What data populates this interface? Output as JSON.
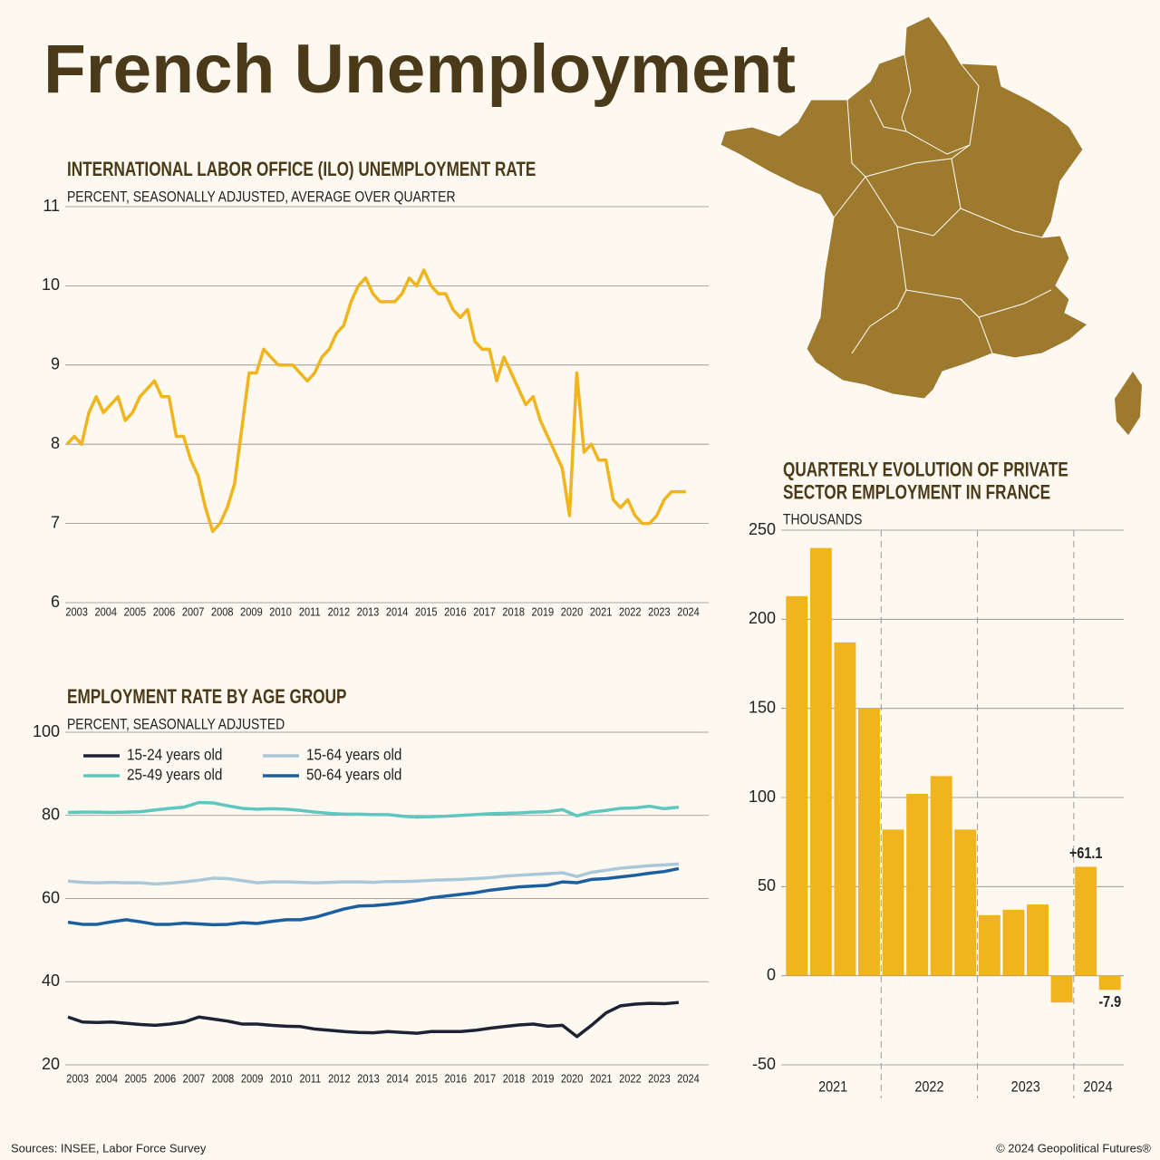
{
  "title": "French Unemployment",
  "footer": {
    "source": "Sources: INSEE, Labor Force Survey",
    "copyright": "© 2024 Geopolitical Futures®"
  },
  "chart_data": [
    {
      "type": "line",
      "title": "INTERNATIONAL LABOR OFFICE (ILO) UNEMPLOYMENT RATE",
      "subtitle": "PERCENT, SEASONALLY ADJUSTED, AVERAGE OVER QUARTER",
      "color": "#f0b41c",
      "x": [
        2003,
        2003.25,
        2003.5,
        2003.75,
        2004,
        2004.25,
        2004.5,
        2004.75,
        2005,
        2005.25,
        2005.5,
        2005.75,
        2006,
        2006.25,
        2006.5,
        2006.75,
        2007,
        2007.25,
        2007.5,
        2007.75,
        2008,
        2008.25,
        2008.5,
        2008.75,
        2009,
        2009.25,
        2009.5,
        2009.75,
        2010,
        2010.25,
        2010.5,
        2010.75,
        2011,
        2011.25,
        2011.5,
        2011.75,
        2012,
        2012.25,
        2012.5,
        2012.75,
        2013,
        2013.25,
        2013.5,
        2013.75,
        2014,
        2014.25,
        2014.5,
        2014.75,
        2015,
        2015.25,
        2015.5,
        2015.75,
        2016,
        2016.25,
        2016.5,
        2016.75,
        2017,
        2017.25,
        2017.5,
        2017.75,
        2018,
        2018.25,
        2018.5,
        2018.75,
        2019,
        2019.25,
        2019.5,
        2019.75,
        2020,
        2020.25,
        2020.5,
        2020.75,
        2021,
        2021.25,
        2021.5,
        2021.75,
        2022,
        2022.25,
        2022.5,
        2022.75,
        2023,
        2023.25,
        2023.5,
        2023.75,
        2024,
        2024.25
      ],
      "values": [
        8.0,
        8.1,
        8.0,
        8.4,
        8.6,
        8.4,
        8.5,
        8.6,
        8.3,
        8.4,
        8.6,
        8.7,
        8.8,
        8.6,
        8.6,
        8.1,
        8.1,
        7.8,
        7.6,
        7.2,
        6.9,
        7.0,
        7.2,
        7.5,
        8.2,
        8.9,
        8.9,
        9.2,
        9.1,
        9.0,
        9.0,
        9.0,
        8.9,
        8.8,
        8.9,
        9.1,
        9.2,
        9.4,
        9.5,
        9.8,
        10.0,
        10.1,
        9.9,
        9.8,
        9.8,
        9.8,
        9.9,
        10.1,
        10.0,
        10.2,
        10.0,
        9.9,
        9.9,
        9.7,
        9.6,
        9.7,
        9.3,
        9.2,
        9.2,
        8.8,
        9.1,
        8.9,
        8.7,
        8.5,
        8.6,
        8.3,
        8.1,
        7.9,
        7.7,
        7.1,
        8.9,
        7.9,
        8.0,
        7.8,
        7.8,
        7.3,
        7.2,
        7.3,
        7.1,
        7.0,
        7.0,
        7.1,
        7.3,
        7.4,
        7.4,
        7.4
      ],
      "xlim": [
        2003,
        2024.5
      ],
      "xticks": [
        2003,
        2004,
        2005,
        2006,
        2007,
        2008,
        2009,
        2010,
        2011,
        2012,
        2013,
        2014,
        2015,
        2016,
        2017,
        2018,
        2019,
        2020,
        2021,
        2022,
        2023,
        2024
      ],
      "ylim": [
        6,
        11
      ],
      "yticks": [
        6,
        7,
        8,
        9,
        10,
        11
      ],
      "grid": true
    },
    {
      "type": "line",
      "title": "EMPLOYMENT RATE BY AGE GROUP",
      "subtitle": "PERCENT, SEASONALLY ADJUSTED",
      "x": [
        2003,
        2003.5,
        2004,
        2004.5,
        2005,
        2005.5,
        2006,
        2006.5,
        2007,
        2007.5,
        2008,
        2008.5,
        2009,
        2009.5,
        2010,
        2010.5,
        2011,
        2011.5,
        2012,
        2012.5,
        2013,
        2013.5,
        2014,
        2014.5,
        2015,
        2015.5,
        2016,
        2016.5,
        2017,
        2017.5,
        2018,
        2018.5,
        2019,
        2019.5,
        2020,
        2020.5,
        2021,
        2021.5,
        2022,
        2022.5,
        2023,
        2023.5,
        2024
      ],
      "series": [
        {
          "name": "15-24 years old",
          "color": "#1e2235",
          "values": [
            31.5,
            30.3,
            30.2,
            30.3,
            30.0,
            29.7,
            29.5,
            29.8,
            30.3,
            31.5,
            31.0,
            30.5,
            29.8,
            29.8,
            29.5,
            29.3,
            29.2,
            28.6,
            28.3,
            28.0,
            27.8,
            27.7,
            28.0,
            27.8,
            27.6,
            28.0,
            28.0,
            28.0,
            28.3,
            28.8,
            29.2,
            29.6,
            29.8,
            29.3,
            29.5,
            26.8,
            29.5,
            32.5,
            34.2,
            34.6,
            34.8,
            34.7,
            35.0
          ]
        },
        {
          "name": "25-49 years old",
          "color": "#5ec8c0",
          "values": [
            80.7,
            80.8,
            80.8,
            80.7,
            80.8,
            80.9,
            81.3,
            81.7,
            82.0,
            83.1,
            83.0,
            82.3,
            81.7,
            81.5,
            81.6,
            81.5,
            81.2,
            80.8,
            80.5,
            80.3,
            80.3,
            80.2,
            80.2,
            79.8,
            79.6,
            79.7,
            79.8,
            80.0,
            80.2,
            80.4,
            80.5,
            80.6,
            80.8,
            80.9,
            81.4,
            79.9,
            80.8,
            81.2,
            81.7,
            81.8,
            82.2,
            81.6,
            82.0
          ]
        },
        {
          "name": "15-64 years old",
          "color": "#a9c8d8",
          "values": [
            64.2,
            63.9,
            63.8,
            63.9,
            63.8,
            63.8,
            63.5,
            63.7,
            64.0,
            64.4,
            64.9,
            64.8,
            64.3,
            63.8,
            64.0,
            64.0,
            63.9,
            63.8,
            63.9,
            64.0,
            64.0,
            63.9,
            64.1,
            64.1,
            64.2,
            64.4,
            64.5,
            64.6,
            64.8,
            65.0,
            65.4,
            65.6,
            65.8,
            66.0,
            66.2,
            65.3,
            66.3,
            66.8,
            67.3,
            67.6,
            67.9,
            68.1,
            68.3
          ]
        },
        {
          "name": "50-64 years old",
          "color": "#1c5fa0",
          "values": [
            54.3,
            53.8,
            53.8,
            54.4,
            54.9,
            54.4,
            53.8,
            53.8,
            54.1,
            53.9,
            53.7,
            53.8,
            54.2,
            54.0,
            54.5,
            54.9,
            54.9,
            55.5,
            56.5,
            57.5,
            58.2,
            58.3,
            58.6,
            59.0,
            59.5,
            60.2,
            60.6,
            61.0,
            61.4,
            62.0,
            62.4,
            62.8,
            63.0,
            63.2,
            64.0,
            63.8,
            64.6,
            64.8,
            65.2,
            65.6,
            66.1,
            66.5,
            67.2
          ]
        }
      ],
      "xlim": [
        2003,
        2024.5
      ],
      "xticks": [
        2003,
        2004,
        2005,
        2006,
        2007,
        2008,
        2009,
        2010,
        2011,
        2012,
        2013,
        2014,
        2015,
        2016,
        2017,
        2018,
        2019,
        2020,
        2021,
        2022,
        2023,
        2024
      ],
      "ylim": [
        20,
        100
      ],
      "yticks": [
        20,
        40,
        60,
        80,
        100
      ],
      "grid": true
    },
    {
      "type": "bar",
      "title": "QUARTERLY EVOLUTION OF PRIVATE SECTOR EMPLOYMENT IN FRANCE",
      "subtitle": "THOUSANDS",
      "color": "#f0b41c",
      "categories": [
        "2021",
        "2021",
        "2021",
        "2021",
        "2022",
        "2022",
        "2022",
        "2022",
        "2023",
        "2023",
        "2023",
        "2023",
        "2024",
        "2024"
      ],
      "values": [
        213,
        240,
        187,
        150,
        82,
        102,
        112,
        82,
        34,
        37,
        40,
        -15,
        61.1,
        -7.9
      ],
      "value_labels": [
        null,
        null,
        null,
        null,
        null,
        null,
        null,
        null,
        null,
        null,
        null,
        null,
        "+61.1",
        "-7.9"
      ],
      "ylim": [
        -50,
        250
      ],
      "yticks": [
        -50,
        0,
        50,
        100,
        150,
        200,
        250
      ],
      "grid": true
    }
  ]
}
